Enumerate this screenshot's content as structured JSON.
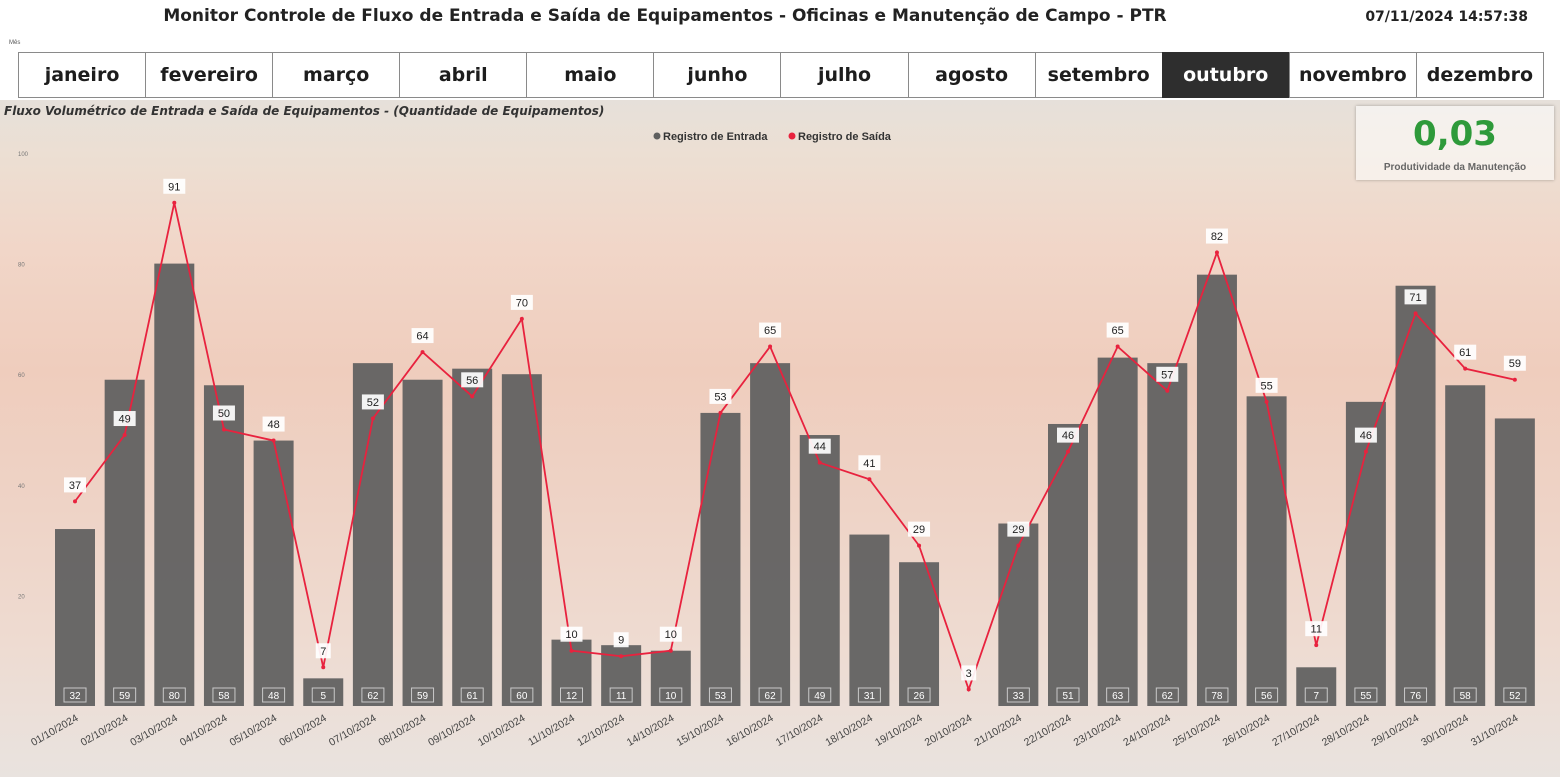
{
  "header": {
    "title": "Monitor Controle de Fluxo de Entrada e Saída de Equipamentos - Oficinas e Manutenção de Campo - PTR",
    "datetime": "07/11/2024 14:57:38",
    "mes_label": "Mês"
  },
  "months": [
    {
      "label": "janeiro",
      "active": false
    },
    {
      "label": "fevereiro",
      "active": false
    },
    {
      "label": "março",
      "active": false
    },
    {
      "label": "abril",
      "active": false
    },
    {
      "label": "maio",
      "active": false
    },
    {
      "label": "junho",
      "active": false
    },
    {
      "label": "julho",
      "active": false
    },
    {
      "label": "agosto",
      "active": false
    },
    {
      "label": "setembro",
      "active": false
    },
    {
      "label": "outubro",
      "active": true
    },
    {
      "label": "novembro",
      "active": false
    },
    {
      "label": "dezembro",
      "active": false
    }
  ],
  "kpi": {
    "value": "0,03",
    "label": "Produtividade da Manutenção",
    "color": "#2e9a3a"
  },
  "chart_data": {
    "type": "bar",
    "title": "Fluxo Volumétrico de Entrada e Saída de Equipamentos - (Quantidade de Equipamentos)",
    "categories": [
      "01/10/2024",
      "02/10/2024",
      "03/10/2024",
      "04/10/2024",
      "05/10/2024",
      "06/10/2024",
      "07/10/2024",
      "08/10/2024",
      "09/10/2024",
      "10/10/2024",
      "11/10/2024",
      "12/10/2024",
      "14/10/2024",
      "15/10/2024",
      "16/10/2024",
      "17/10/2024",
      "18/10/2024",
      "19/10/2024",
      "20/10/2024",
      "21/10/2024",
      "22/10/2024",
      "23/10/2024",
      "24/10/2024",
      "25/10/2024",
      "26/10/2024",
      "27/10/2024",
      "28/10/2024",
      "29/10/2024",
      "30/10/2024",
      "31/10/2024"
    ],
    "series": [
      {
        "name": "Registro de Entrada",
        "kind": "bar",
        "color": "#5f5f5f",
        "values": [
          32,
          59,
          80,
          58,
          48,
          5,
          62,
          59,
          61,
          60,
          12,
          11,
          10,
          53,
          62,
          49,
          31,
          26,
          null,
          33,
          51,
          63,
          62,
          78,
          56,
          7,
          55,
          76,
          58,
          52
        ]
      },
      {
        "name": "Registro de Saída",
        "kind": "line",
        "color": "#e8223e",
        "values": [
          37,
          49,
          91,
          50,
          48,
          7,
          52,
          64,
          56,
          70,
          10,
          9,
          10,
          53,
          65,
          44,
          41,
          29,
          3,
          29,
          46,
          65,
          57,
          82,
          55,
          11,
          46,
          71,
          61,
          59
        ]
      }
    ],
    "ylim": [
      0,
      100
    ],
    "yticks": [
      20,
      40,
      60,
      80,
      100
    ],
    "legend_position": "top-center",
    "grid": false
  }
}
